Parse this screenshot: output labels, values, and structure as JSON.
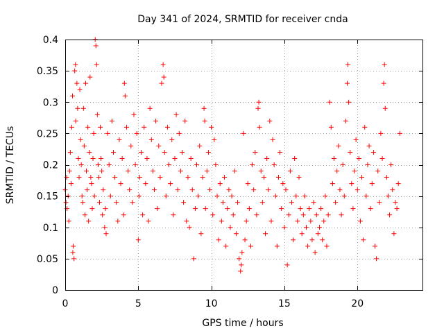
{
  "chart_data": {
    "type": "scatter",
    "title": "Day 341 of 2024, SRMTID for receiver cnda",
    "xlabel": "GPS time / hours",
    "ylabel": "SRMTID / TECUs",
    "xlim": [
      0,
      24.5
    ],
    "ylim": [
      0,
      0.4
    ],
    "xticks": [
      0,
      5,
      10,
      15,
      20
    ],
    "xtick_labels": [
      "0",
      "5",
      "10",
      "15",
      "20"
    ],
    "yticks": [
      0,
      0.05,
      0.1,
      0.15,
      0.2,
      0.25,
      0.3,
      0.35,
      0.4
    ],
    "ytick_labels": [
      "0",
      "0.05",
      "0.1",
      "0.15",
      "0.2",
      "0.25",
      "0.3",
      "0.35",
      "0.4"
    ],
    "grid": true,
    "marker": "plus",
    "color": "#ff0000",
    "series": [
      {
        "name": "SRMTID",
        "points": [
          [
            0.0,
            0.16
          ],
          [
            0.05,
            0.14
          ],
          [
            0.1,
            0.18
          ],
          [
            0.12,
            0.13
          ],
          [
            0.2,
            0.15
          ],
          [
            0.25,
            0.11
          ],
          [
            0.3,
            0.19
          ],
          [
            0.35,
            0.22
          ],
          [
            0.4,
            0.17
          ],
          [
            0.45,
            0.26
          ],
          [
            0.5,
            0.31
          ],
          [
            0.52,
            0.06
          ],
          [
            0.55,
            0.07
          ],
          [
            0.6,
            0.05
          ],
          [
            0.65,
            0.35
          ],
          [
            0.7,
            0.36
          ],
          [
            0.72,
            0.27
          ],
          [
            0.8,
            0.33
          ],
          [
            0.85,
            0.29
          ],
          [
            0.9,
            0.21
          ],
          [
            0.95,
            0.18
          ],
          [
            1.0,
            0.32
          ],
          [
            1.05,
            0.24
          ],
          [
            1.1,
            0.2
          ],
          [
            1.15,
            0.15
          ],
          [
            1.2,
            0.14
          ],
          [
            1.25,
            0.29
          ],
          [
            1.3,
            0.23
          ],
          [
            1.35,
            0.12
          ],
          [
            1.4,
            0.33
          ],
          [
            1.45,
            0.19
          ],
          [
            1.5,
            0.16
          ],
          [
            1.55,
            0.26
          ],
          [
            1.6,
            0.11
          ],
          [
            1.65,
            0.22
          ],
          [
            1.7,
            0.34
          ],
          [
            1.75,
            0.18
          ],
          [
            1.8,
            0.17
          ],
          [
            1.85,
            0.13
          ],
          [
            1.9,
            0.21
          ],
          [
            1.95,
            0.25
          ],
          [
            2.0,
            0.15
          ],
          [
            2.05,
            0.4
          ],
          [
            2.1,
            0.39
          ],
          [
            2.15,
            0.36
          ],
          [
            2.2,
            0.28
          ],
          [
            2.25,
            0.2
          ],
          [
            2.3,
            0.18
          ],
          [
            2.35,
            0.14
          ],
          [
            2.4,
            0.26
          ],
          [
            2.45,
            0.21
          ],
          [
            2.5,
            0.19
          ],
          [
            2.55,
            0.12
          ],
          [
            2.6,
            0.16
          ],
          [
            2.7,
            0.1
          ],
          [
            2.75,
            0.13
          ],
          [
            2.8,
            0.09
          ],
          [
            2.9,
            0.25
          ],
          [
            3.0,
            0.2
          ],
          [
            3.1,
            0.15
          ],
          [
            3.2,
            0.27
          ],
          [
            3.3,
            0.22
          ],
          [
            3.4,
            0.18
          ],
          [
            3.5,
            0.14
          ],
          [
            3.6,
            0.11
          ],
          [
            3.7,
            0.24
          ],
          [
            3.8,
            0.17
          ],
          [
            3.9,
            0.21
          ],
          [
            4.0,
            0.12
          ],
          [
            4.05,
            0.33
          ],
          [
            4.1,
            0.31
          ],
          [
            4.2,
            0.26
          ],
          [
            4.3,
            0.19
          ],
          [
            4.4,
            0.16
          ],
          [
            4.5,
            0.23
          ],
          [
            4.6,
            0.14
          ],
          [
            4.7,
            0.28
          ],
          [
            4.8,
            0.2
          ],
          [
            4.9,
            0.25
          ],
          [
            5.0,
            0.08
          ],
          [
            5.05,
            0.15
          ],
          [
            5.1,
            0.18
          ],
          [
            5.2,
            0.22
          ],
          [
            5.3,
            0.12
          ],
          [
            5.4,
            0.26
          ],
          [
            5.5,
            0.17
          ],
          [
            5.6,
            0.21
          ],
          [
            5.7,
            0.11
          ],
          [
            5.8,
            0.29
          ],
          [
            5.9,
            0.24
          ],
          [
            6.0,
            0.19
          ],
          [
            6.1,
            0.16
          ],
          [
            6.2,
            0.27
          ],
          [
            6.3,
            0.13
          ],
          [
            6.4,
            0.23
          ],
          [
            6.5,
            0.18
          ],
          [
            6.6,
            0.33
          ],
          [
            6.7,
            0.36
          ],
          [
            6.75,
            0.34
          ],
          [
            6.8,
            0.22
          ],
          [
            6.9,
            0.15
          ],
          [
            7.0,
            0.26
          ],
          [
            7.1,
            0.2
          ],
          [
            7.2,
            0.17
          ],
          [
            7.3,
            0.24
          ],
          [
            7.4,
            0.12
          ],
          [
            7.5,
            0.21
          ],
          [
            7.6,
            0.28
          ],
          [
            7.7,
            0.16
          ],
          [
            7.8,
            0.25
          ],
          [
            7.9,
            0.19
          ],
          [
            8.0,
            0.22
          ],
          [
            8.1,
            0.14
          ],
          [
            8.2,
            0.27
          ],
          [
            8.3,
            0.11
          ],
          [
            8.4,
            0.18
          ],
          [
            8.5,
            0.1
          ],
          [
            8.6,
            0.21
          ],
          [
            8.7,
            0.16
          ],
          [
            8.8,
            0.05
          ],
          [
            8.9,
            0.13
          ],
          [
            9.0,
            0.2
          ],
          [
            9.1,
            0.15
          ],
          [
            9.2,
            0.23
          ],
          [
            9.3,
            0.09
          ],
          [
            9.4,
            0.18
          ],
          [
            9.5,
            0.29
          ],
          [
            9.55,
            0.27
          ],
          [
            9.6,
            0.13
          ],
          [
            9.7,
            0.19
          ],
          [
            9.8,
            0.22
          ],
          [
            9.9,
            0.16
          ],
          [
            10.0,
            0.26
          ],
          [
            10.1,
            0.12
          ],
          [
            10.2,
            0.24
          ],
          [
            10.3,
            0.2
          ],
          [
            10.4,
            0.15
          ],
          [
            10.5,
            0.08
          ],
          [
            10.6,
            0.17
          ],
          [
            10.7,
            0.11
          ],
          [
            10.8,
            0.14
          ],
          [
            10.9,
            0.18
          ],
          [
            11.0,
            0.07
          ],
          [
            11.1,
            0.13
          ],
          [
            11.2,
            0.16
          ],
          [
            11.3,
            0.1
          ],
          [
            11.4,
            0.15
          ],
          [
            11.5,
            0.12
          ],
          [
            11.6,
            0.19
          ],
          [
            11.7,
            0.09
          ],
          [
            11.8,
            0.14
          ],
          [
            11.9,
            0.05
          ],
          [
            12.0,
            0.03
          ],
          [
            12.05,
            0.04
          ],
          [
            12.1,
            0.06
          ],
          [
            12.2,
            0.25
          ],
          [
            12.3,
            0.08
          ],
          [
            12.4,
            0.11
          ],
          [
            12.5,
            0.17
          ],
          [
            12.6,
            0.13
          ],
          [
            12.7,
            0.07
          ],
          [
            12.8,
            0.2
          ],
          [
            12.9,
            0.16
          ],
          [
            13.0,
            0.22
          ],
          [
            13.1,
            0.12
          ],
          [
            13.2,
            0.29
          ],
          [
            13.25,
            0.3
          ],
          [
            13.3,
            0.26
          ],
          [
            13.4,
            0.19
          ],
          [
            13.5,
            0.14
          ],
          [
            13.6,
            0.18
          ],
          [
            13.7,
            0.09
          ],
          [
            13.8,
            0.21
          ],
          [
            13.9,
            0.16
          ],
          [
            14.0,
            0.27
          ],
          [
            14.1,
            0.11
          ],
          [
            14.2,
            0.24
          ],
          [
            14.3,
            0.2
          ],
          [
            14.4,
            0.15
          ],
          [
            14.5,
            0.07
          ],
          [
            14.6,
            0.18
          ],
          [
            14.7,
            0.22
          ],
          [
            14.8,
            0.13
          ],
          [
            14.9,
            0.17
          ],
          [
            15.0,
            0.1
          ],
          [
            15.1,
            0.16
          ],
          [
            15.2,
            0.04
          ],
          [
            15.3,
            0.12
          ],
          [
            15.4,
            0.19
          ],
          [
            15.5,
            0.14
          ],
          [
            15.6,
            0.08
          ],
          [
            15.7,
            0.21
          ],
          [
            15.8,
            0.15
          ],
          [
            15.9,
            0.11
          ],
          [
            16.0,
            0.18
          ],
          [
            16.1,
            0.13
          ],
          [
            16.2,
            0.09
          ],
          [
            16.3,
            0.12
          ],
          [
            16.4,
            0.15
          ],
          [
            16.5,
            0.1
          ],
          [
            16.6,
            0.07
          ],
          [
            16.7,
            0.13
          ],
          [
            16.8,
            0.11
          ],
          [
            16.9,
            0.08
          ],
          [
            17.0,
            0.14
          ],
          [
            17.1,
            0.06
          ],
          [
            17.2,
            0.12
          ],
          [
            17.3,
            0.09
          ],
          [
            17.4,
            0.1
          ],
          [
            17.5,
            0.13
          ],
          [
            17.6,
            0.08
          ],
          [
            17.7,
            0.11
          ],
          [
            17.8,
            0.15
          ],
          [
            17.9,
            0.07
          ],
          [
            18.0,
            0.12
          ],
          [
            18.1,
            0.3
          ],
          [
            18.2,
            0.26
          ],
          [
            18.3,
            0.17
          ],
          [
            18.4,
            0.21
          ],
          [
            18.5,
            0.14
          ],
          [
            18.6,
            0.19
          ],
          [
            18.7,
            0.23
          ],
          [
            18.8,
            0.16
          ],
          [
            18.9,
            0.12
          ],
          [
            19.0,
            0.2
          ],
          [
            19.1,
            0.15
          ],
          [
            19.2,
            0.27
          ],
          [
            19.3,
            0.33
          ],
          [
            19.35,
            0.36
          ],
          [
            19.4,
            0.3
          ],
          [
            19.5,
            0.22
          ],
          [
            19.6,
            0.17
          ],
          [
            19.7,
            0.13
          ],
          [
            19.8,
            0.19
          ],
          [
            19.9,
            0.24
          ],
          [
            20.0,
            0.16
          ],
          [
            20.1,
            0.21
          ],
          [
            20.2,
            0.11
          ],
          [
            20.3,
            0.18
          ],
          [
            20.4,
            0.08
          ],
          [
            20.5,
            0.26
          ],
          [
            20.6,
            0.15
          ],
          [
            20.7,
            0.2
          ],
          [
            20.8,
            0.23
          ],
          [
            20.9,
            0.13
          ],
          [
            21.0,
            0.17
          ],
          [
            21.1,
            0.22
          ],
          [
            21.2,
            0.07
          ],
          [
            21.3,
            0.05
          ],
          [
            21.4,
            0.19
          ],
          [
            21.5,
            0.14
          ],
          [
            21.6,
            0.25
          ],
          [
            21.7,
            0.21
          ],
          [
            21.8,
            0.33
          ],
          [
            21.85,
            0.36
          ],
          [
            21.9,
            0.29
          ],
          [
            22.0,
            0.18
          ],
          [
            22.1,
            0.15
          ],
          [
            22.2,
            0.12
          ],
          [
            22.3,
            0.2
          ],
          [
            22.4,
            0.16
          ],
          [
            22.5,
            0.09
          ],
          [
            22.6,
            0.14
          ],
          [
            22.7,
            0.13
          ],
          [
            22.8,
            0.17
          ],
          [
            22.9,
            0.25
          ]
        ]
      }
    ]
  }
}
